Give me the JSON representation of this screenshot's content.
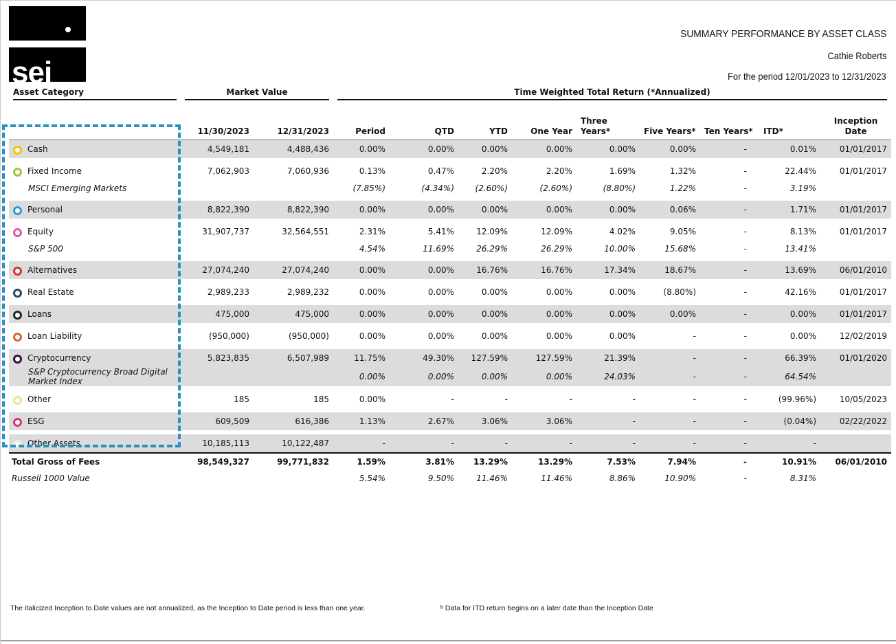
{
  "header": {
    "logo": "sei",
    "title": "SUMMARY PERFORMANCE BY ASSET CLASS",
    "client": "Cathie Roberts",
    "period": "For the period 12/01/2023 to 12/31/2023"
  },
  "table": {
    "group_headers": [
      "Asset Category",
      "Market Value",
      "Time Weighted Total Return (*Annualized)"
    ],
    "columns": [
      "11/30/2023",
      "12/31/2023",
      "Period",
      "QTD",
      "YTD",
      "One Year",
      "Three Years*",
      "Five Years*",
      "Ten Years*",
      "ITD*",
      "Inception Date"
    ],
    "rows": [
      {
        "name": "Cash",
        "kind": "asset",
        "color": "#f5c400",
        "shaded": true,
        "cells": [
          "4,549,181",
          "4,488,436",
          "0.00%",
          "0.00%",
          "0.00%",
          "0.00%",
          "0.00%",
          "0.00%",
          "-",
          "0.01%",
          "01/01/2017"
        ]
      },
      {
        "name": "Fixed Income",
        "kind": "asset",
        "color": "#9dc93b",
        "shaded": false,
        "cells": [
          "7,062,903",
          "7,060,936",
          "0.13%",
          "0.47%",
          "2.20%",
          "2.20%",
          "1.69%",
          "1.32%",
          "-",
          "22.44%",
          "01/01/2017"
        ]
      },
      {
        "name": "MSCI Emerging Markets",
        "kind": "benchmark",
        "shaded": false,
        "cells": [
          null,
          null,
          "(7.85%)",
          "(4.34%)",
          "(2.60%)",
          "(2.60%)",
          "(8.80%)",
          "1.22%",
          "-",
          "3.19%",
          null
        ]
      },
      {
        "name": "Personal",
        "kind": "asset",
        "color": "#2a9fd8",
        "shaded": true,
        "cells": [
          "8,822,390",
          "8,822,390",
          "0.00%",
          "0.00%",
          "0.00%",
          "0.00%",
          "0.00%",
          "0.06%",
          "-",
          "1.71%",
          "01/01/2017"
        ]
      },
      {
        "name": "Equity",
        "kind": "asset",
        "color": "#e05aa8",
        "shaded": false,
        "cells": [
          "31,907,737",
          "32,564,551",
          "2.31%",
          "5.41%",
          "12.09%",
          "12.09%",
          "4.02%",
          "9.05%",
          "-",
          "8.13%",
          "01/01/2017"
        ]
      },
      {
        "name": "S&P 500",
        "kind": "benchmark",
        "shaded": false,
        "cells": [
          null,
          null,
          "4.54%",
          "11.69%",
          "26.29%",
          "26.29%",
          "10.00%",
          "15.68%",
          "-",
          "13.41%",
          null
        ]
      },
      {
        "name": "Alternatives",
        "kind": "asset",
        "color": "#d6303a",
        "shaded": true,
        "cells": [
          "27,074,240",
          "27,074,240",
          "0.00%",
          "0.00%",
          "16.76%",
          "16.76%",
          "17.34%",
          "18.67%",
          "-",
          "13.69%",
          "06/01/2010"
        ]
      },
      {
        "name": "Real Estate",
        "kind": "asset",
        "color": "#2b4a5a",
        "shaded": false,
        "cells": [
          "2,989,233",
          "2,989,232",
          "0.00%",
          "0.00%",
          "0.00%",
          "0.00%",
          "0.00%",
          "(8.80%)",
          "-",
          "42.16%",
          "01/01/2017"
        ]
      },
      {
        "name": "Loans",
        "kind": "asset",
        "color": "#1f2d1f",
        "shaded": true,
        "cells": [
          "475,000",
          "475,000",
          "0.00%",
          "0.00%",
          "0.00%",
          "0.00%",
          "0.00%",
          "0.00%",
          "-",
          "0.00%",
          "01/01/2017"
        ]
      },
      {
        "name": "Loan Liability",
        "kind": "asset",
        "color": "#d46a28",
        "shaded": false,
        "cells": [
          "(950,000)",
          "(950,000)",
          "0.00%",
          "0.00%",
          "0.00%",
          "0.00%",
          "0.00%",
          "-",
          "-",
          "0.00%",
          "12/02/2019"
        ]
      },
      {
        "name": "Cryptocurrency",
        "kind": "asset",
        "color": "#3a0f3a",
        "shaded": true,
        "cells": [
          "5,823,835",
          "6,507,989",
          "11.75%",
          "49.30%",
          "127.59%",
          "127.59%",
          "21.39%",
          "-",
          "-",
          "66.39%",
          "01/01/2020"
        ]
      },
      {
        "name": "S&P Cryptocurrency Broad Digital Market Index",
        "kind": "benchmark",
        "shaded": true,
        "cells": [
          null,
          null,
          "0.00%",
          "0.00%",
          "0.00%",
          "0.00%",
          "24.03%",
          "-",
          "-",
          "64.54%",
          null
        ]
      },
      {
        "name": "Other",
        "kind": "asset",
        "color": "#f7e08a",
        "shaded": false,
        "cells": [
          "185",
          "185",
          "0.00%",
          "-",
          "-",
          "-",
          "-",
          "-",
          "-",
          "(99.96%)",
          "10/05/2023"
        ]
      },
      {
        "name": "ESG",
        "kind": "asset",
        "color": "#d6337a",
        "shaded": true,
        "cells": [
          "609,509",
          "616,386",
          "1.13%",
          "2.67%",
          "3.06%",
          "3.06%",
          "-",
          "-",
          "-",
          "(0.04%)",
          "02/22/2022"
        ]
      },
      {
        "name": "Other Assets",
        "kind": "asset",
        "color": "#e6eed6",
        "shaded": true,
        "cells": [
          "10,185,113",
          "10,122,487",
          "-",
          "-",
          "-",
          "-",
          "-",
          "-",
          "-",
          "-",
          null
        ]
      },
      {
        "name": "Total Gross of Fees",
        "kind": "total",
        "shaded": false,
        "cells": [
          "98,549,327",
          "99,771,832",
          "1.59%",
          "3.81%",
          "13.29%",
          "13.29%",
          "7.53%",
          "7.94%",
          "-",
          "10.91%",
          "06/01/2010"
        ]
      },
      {
        "name": "Russell 1000 Value",
        "kind": "benchmark",
        "shaded": false,
        "cells": [
          null,
          null,
          "5.54%",
          "9.50%",
          "11.46%",
          "11.46%",
          "8.86%",
          "10.90%",
          "-",
          "8.31%",
          null
        ]
      }
    ]
  },
  "footnotes": [
    "The italicized Inception to Date values are not annualized, as the Inception to Date period is less than one year.",
    "ᵇ Data for ITD return begins on a later date than the Inception Date"
  ]
}
